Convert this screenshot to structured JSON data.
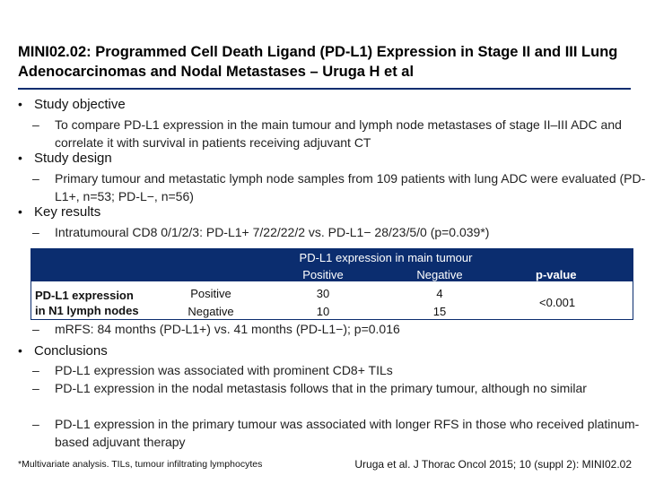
{
  "title": "MINI02.02: Programmed Cell Death Ligand (PD-L1) Expression in Stage II and III Lung Adenocarcinomas and Nodal Metastases – Uruga H et al",
  "bullet_glyph": "•",
  "dash_glyph": "–",
  "sections": {
    "objective": {
      "heading": "Study objective",
      "items": [
        "To compare PD-L1 expression in the main tumour and lymph node metastases of stage II–III ADC and correlate it with survival in patients receiving adjuvant CT"
      ]
    },
    "design": {
      "heading": "Study design",
      "items": [
        "Primary tumour and metastatic lymph node samples from 109 patients with lung ADC were evaluated (PD-L1+, n=53; PD-L−, n=56)"
      ]
    },
    "results": {
      "heading": "Key results",
      "items": [
        "Intratumoural CD8 0/1/2/3: PD-L1+ 7/22/22/2 vs. PD-L1− 28/23/5/0 (p=0.039*)",
        "mRFS: 84 months (PD-L1+) vs. 41 months (PD-L1−); p=0.016"
      ]
    },
    "conclusions": {
      "heading": "Conclusions",
      "items": [
        "PD-L1 expression was associated with prominent CD8+ TILs",
        "PD-L1 expression in the nodal metastasis follows that in the primary tumour, although no similar",
        "PD-L1 expression in the primary tumour was associated with longer RFS in those who received platinum-based adjuvant therapy"
      ]
    }
  },
  "table": {
    "header_main": "PD-L1 expression in main tumour",
    "col_positive": "Positive",
    "col_negative": "Negative",
    "col_pvalue": "p-value",
    "row_group_label_line1": "PD-L1 expression",
    "row_group_label_line2": "in N1 lymph nodes",
    "rows": [
      {
        "label": "Positive",
        "positive": "30",
        "negative": "4"
      },
      {
        "label": "Negative",
        "positive": "10",
        "negative": "15"
      }
    ],
    "pvalue": "<0.001"
  },
  "footnote": "*Multivariate analysis. TILs, tumour infiltrating lymphocytes",
  "citation": "Uruga et al. J Thorac Oncol 2015; 10 (suppl 2): MINI02.02"
}
